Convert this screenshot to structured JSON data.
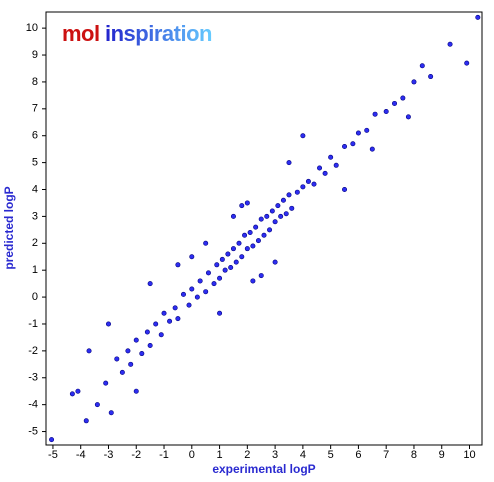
{
  "chart_data": {
    "type": "scatter",
    "annotations": [
      "mol",
      "inspiration"
    ],
    "x_label": "experimental logP",
    "y_label": "predicted logP",
    "color": "#2d2df0",
    "xlim": [
      -5.25,
      10.45
    ],
    "ylim": [
      -5.5,
      10.6
    ],
    "xticks": [
      -5,
      -4,
      -3,
      -2,
      -1,
      0,
      1,
      2,
      3,
      4,
      5,
      6,
      7,
      8,
      9,
      10
    ],
    "yticks": [
      -5,
      -4,
      -3,
      -2,
      -1,
      0,
      1,
      2,
      3,
      4,
      5,
      6,
      7,
      8,
      9,
      10
    ],
    "x": [
      -5.05,
      -3.8,
      -4.3,
      -4.1,
      -3.4,
      -2.9,
      -3.0,
      -3.1,
      -2.7,
      -2.5,
      -2.3,
      -2.2,
      -2.0,
      -1.8,
      -1.6,
      -1.5,
      -1.3,
      -1.1,
      -1.0,
      -0.8,
      -0.6,
      -0.5,
      -0.3,
      -0.1,
      0.0,
      0.2,
      0.3,
      0.5,
      0.6,
      0.8,
      0.9,
      1.0,
      1.1,
      1.2,
      1.3,
      1.4,
      1.5,
      1.6,
      1.7,
      1.8,
      1.9,
      2.0,
      2.1,
      2.2,
      2.3,
      2.4,
      2.5,
      2.6,
      2.7,
      2.8,
      2.9,
      3.0,
      3.1,
      3.2,
      3.3,
      3.4,
      3.5,
      3.6,
      3.8,
      4.0,
      4.2,
      4.4,
      4.6,
      4.8,
      5.0,
      5.2,
      5.5,
      5.8,
      6.0,
      6.3,
      6.6,
      7.0,
      7.3,
      7.6,
      8.0,
      8.3,
      8.6,
      9.3,
      9.9,
      10.3,
      0.5,
      1.0,
      2.0,
      3.0,
      1.5,
      2.5,
      -1.5,
      4.0,
      5.5,
      0.0,
      3.5,
      2.2,
      1.8,
      -2.0,
      6.5,
      7.8,
      -0.5,
      -3.7
    ],
    "y": [
      -5.3,
      -4.6,
      -3.6,
      -3.5,
      -4.0,
      -4.3,
      -1.0,
      -3.2,
      -2.3,
      -2.8,
      -2.0,
      -2.5,
      -1.6,
      -2.1,
      -1.3,
      -1.8,
      -1.0,
      -1.4,
      -0.6,
      -0.9,
      -0.4,
      -0.8,
      0.1,
      -0.3,
      0.3,
      0.0,
      0.6,
      0.2,
      0.9,
      0.5,
      1.2,
      0.7,
      1.4,
      1.0,
      1.6,
      1.1,
      1.8,
      1.3,
      2.0,
      1.5,
      2.3,
      1.8,
      2.4,
      1.9,
      2.6,
      2.1,
      2.9,
      2.3,
      3.0,
      2.5,
      3.2,
      2.8,
      3.4,
      3.0,
      3.6,
      3.1,
      3.8,
      3.3,
      3.9,
      4.1,
      4.3,
      4.2,
      4.8,
      4.6,
      5.2,
      4.9,
      5.6,
      5.7,
      6.1,
      6.2,
      6.8,
      6.9,
      7.2,
      7.4,
      8.0,
      8.6,
      8.2,
      9.4,
      8.7,
      10.4,
      2.0,
      -0.6,
      3.5,
      1.3,
      3.0,
      0.8,
      0.5,
      6.0,
      4.0,
      1.5,
      5.0,
      0.6,
      3.4,
      -3.5,
      5.5,
      6.7,
      1.2,
      -2.0
    ]
  }
}
